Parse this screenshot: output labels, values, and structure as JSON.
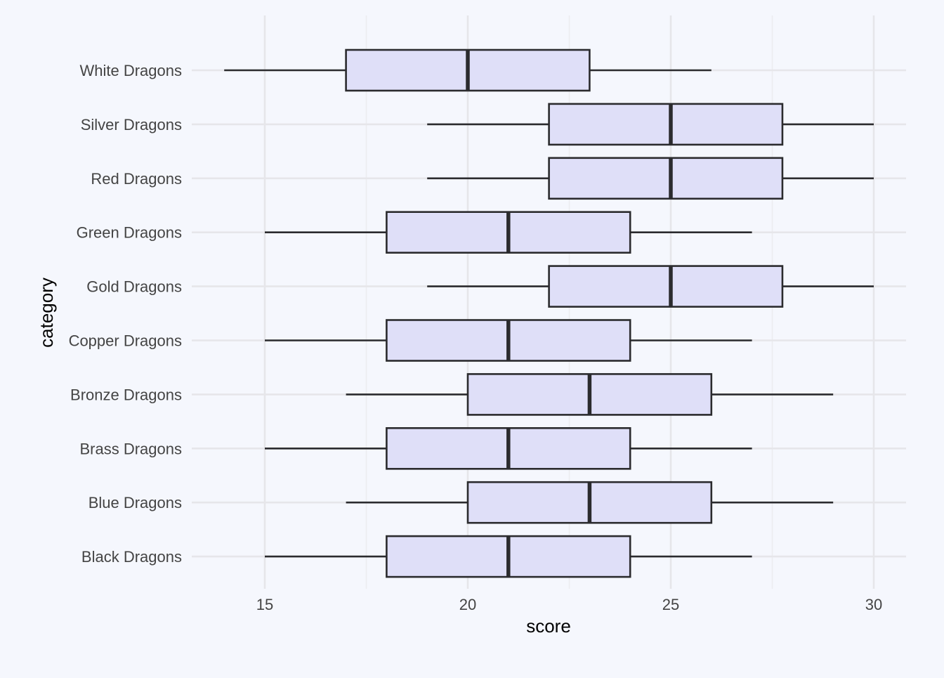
{
  "colors": {
    "background": "#f5f7fd",
    "box_fill": "#dfdff8",
    "box_stroke": "#2b2b2e",
    "grid": "#e6e6ea"
  },
  "chart_data": {
    "type": "boxplot",
    "orientation": "horizontal",
    "xlabel": "score",
    "ylabel": "category",
    "xlim": [
      13.2,
      30.8
    ],
    "x_ticks": [
      15,
      20,
      25,
      30
    ],
    "x_tick_labels": [
      "15",
      "20",
      "25",
      "30"
    ],
    "grid": true,
    "categories": [
      "Black Dragons",
      "Blue Dragons",
      "Brass Dragons",
      "Bronze Dragons",
      "Copper Dragons",
      "Gold Dragons",
      "Green Dragons",
      "Red Dragons",
      "Silver Dragons",
      "White Dragons"
    ],
    "boxes": [
      {
        "category": "Black Dragons",
        "min": 15,
        "q1": 18,
        "median": 21,
        "q3": 24,
        "max": 27
      },
      {
        "category": "Blue Dragons",
        "min": 17,
        "q1": 20,
        "median": 23,
        "q3": 26,
        "max": 29
      },
      {
        "category": "Brass Dragons",
        "min": 15,
        "q1": 18,
        "median": 21,
        "q3": 24,
        "max": 27
      },
      {
        "category": "Bronze Dragons",
        "min": 17,
        "q1": 20,
        "median": 23,
        "q3": 26,
        "max": 29
      },
      {
        "category": "Copper Dragons",
        "min": 15,
        "q1": 18,
        "median": 21,
        "q3": 24,
        "max": 27
      },
      {
        "category": "Gold Dragons",
        "min": 19,
        "q1": 22,
        "median": 25,
        "q3": 27.75,
        "max": 30
      },
      {
        "category": "Green Dragons",
        "min": 15,
        "q1": 18,
        "median": 21,
        "q3": 24,
        "max": 27
      },
      {
        "category": "Red Dragons",
        "min": 19,
        "q1": 22,
        "median": 25,
        "q3": 27.75,
        "max": 30
      },
      {
        "category": "Silver Dragons",
        "min": 19,
        "q1": 22,
        "median": 25,
        "q3": 27.75,
        "max": 30
      },
      {
        "category": "White Dragons",
        "min": 14,
        "q1": 17,
        "median": 20,
        "q3": 23,
        "max": 26
      }
    ]
  }
}
